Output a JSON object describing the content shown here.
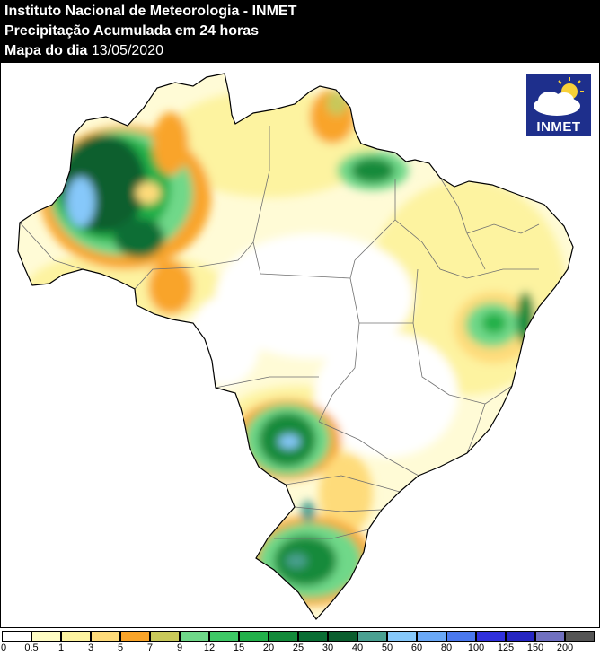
{
  "header": {
    "line1": "Instituto Nacional de Meteorologia - INMET",
    "line2": "Precipitação Acumulada em 24 horas",
    "line3_label": "Mapa do dia",
    "line3_date": "13/05/2020"
  },
  "logo": {
    "text": "INMET",
    "icon": "sun-cloud-icon"
  },
  "legend": {
    "labels": [
      "0",
      "0.5",
      "1",
      "3",
      "5",
      "7",
      "9",
      "12",
      "15",
      "20",
      "25",
      "30",
      "40",
      "50",
      "60",
      "80",
      "100",
      "125",
      "150",
      "200"
    ],
    "colors": [
      "#ffffff",
      "#fefcc4",
      "#fdf3a0",
      "#fedb7a",
      "#f9a429",
      "#c8c85a",
      "#6fd889",
      "#3ec866",
      "#22b04a",
      "#138a3a",
      "#0a6e34",
      "#0b5e2e",
      "#4aa091",
      "#86c8fa",
      "#6aa8f6",
      "#4a78ee",
      "#3030dc",
      "#2626c2",
      "#7070c0",
      "#555555"
    ]
  }
}
